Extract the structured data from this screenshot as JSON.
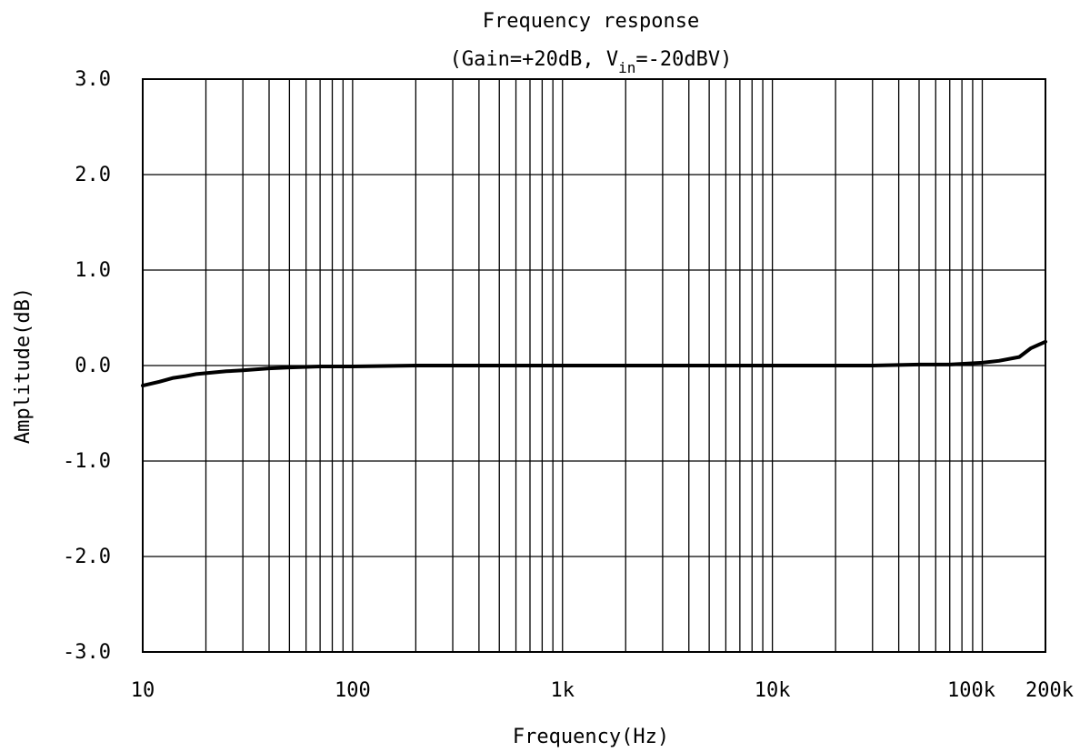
{
  "chart_data": {
    "type": "line",
    "title": "Frequency response",
    "subtitle_prefix": "(Gain=+20dB, V",
    "subtitle_sub": "in",
    "subtitle_suffix": "=-20dBV)",
    "xlabel": "Frequency(Hz)",
    "ylabel": "Amplitude(dB)",
    "x_scale": "log",
    "xlim": [
      10,
      200000
    ],
    "ylim": [
      -3.0,
      3.0
    ],
    "grid": true,
    "x_ticks": [
      {
        "value": 10,
        "label": "10"
      },
      {
        "value": 100,
        "label": "100"
      },
      {
        "value": 1000,
        "label": "1k"
      },
      {
        "value": 10000,
        "label": "10k"
      },
      {
        "value": 100000,
        "label": "100k"
      },
      {
        "value": 200000,
        "label": "200k"
      }
    ],
    "y_ticks": [
      {
        "value": 3,
        "label": "3.0"
      },
      {
        "value": 2,
        "label": "2.0"
      },
      {
        "value": 1,
        "label": "1.0"
      },
      {
        "value": 0,
        "label": "0.0"
      },
      {
        "value": -1,
        "label": "-1.0"
      },
      {
        "value": -2,
        "label": "-2.0"
      },
      {
        "value": -3,
        "label": "-3.0"
      }
    ],
    "series": [
      {
        "color": "#000000",
        "x": [
          10,
          12,
          14,
          16,
          18,
          20,
          25,
          30,
          40,
          50,
          70,
          100,
          200,
          500,
          1000,
          5000,
          10000,
          30000,
          50000,
          70000,
          100000,
          120000,
          150000,
          170000,
          200000
        ],
        "y": [
          -0.21,
          -0.17,
          -0.13,
          -0.11,
          -0.09,
          -0.08,
          -0.06,
          -0.05,
          -0.03,
          -0.02,
          -0.01,
          -0.01,
          0.0,
          0.0,
          0.0,
          0.0,
          0.0,
          0.0,
          0.01,
          0.01,
          0.03,
          0.05,
          0.09,
          0.18,
          0.25
        ]
      }
    ]
  }
}
